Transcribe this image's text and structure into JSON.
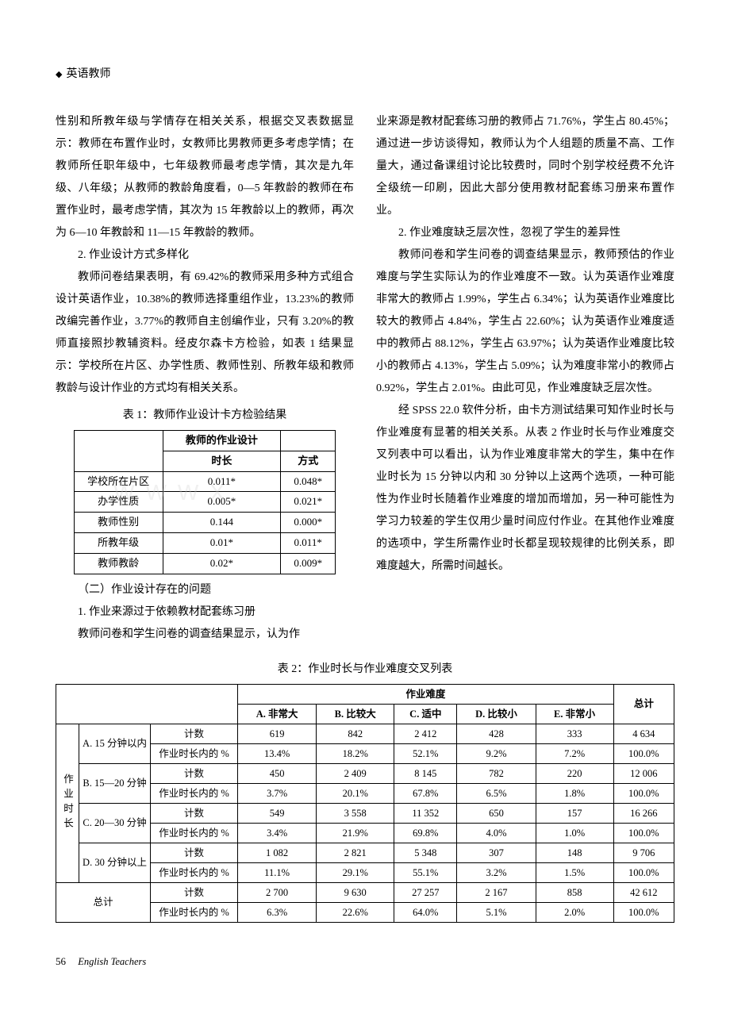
{
  "header": {
    "title": "英语教师"
  },
  "col_left": {
    "p1": "性别和所教年级与学情存在相关关系，根据交叉表数据显示：教师在布置作业时，女教师比男教师更多考虑学情；在教师所任职年级中，七年级教师最考虑学情，其次是九年级、八年级；从教师的教龄角度看，0—5 年教龄的教师在布置作业时，最考虑学情，其次为 15 年教龄以上的教师，再次为 6—10 年教龄和 11—15 年教龄的教师。",
    "h2_1": "2. 作业设计方式多样化",
    "p2": "教师问卷结果表明，有 69.42%的教师采用多种方式组合设计英语作业，10.38%的教师选择重组作业，13.23%的教师改编完善作业，3.77%的教师自主创编作业，只有 3.20%的教师直接照抄教辅资料。经皮尔森卡方检验，如表 1 结果显示：学校所在片区、办学性质、教师性别、所教年级和教师教龄与设计作业的方式均有相关关系。",
    "table1_caption": "表 1：教师作业设计卡方检验结果",
    "h3_1": "（二）作业设计存在的问题",
    "h3_2": "1. 作业来源过于依赖教材配套练习册",
    "p3": "教师问卷和学生问卷的调查结果显示，认为作"
  },
  "col_right": {
    "p1": "业来源是教材配套练习册的教师占 71.76%，学生占 80.45%；通过进一步访谈得知，教师认为个人组题的质量不高、工作量大，通过备课组讨论比较费时，同时个别学校经费不允许全级统一印刷，因此大部分使用教材配套练习册来布置作业。",
    "h2_1": "2. 作业难度缺乏层次性，忽视了学生的差异性",
    "p2": "教师问卷和学生问卷的调查结果显示，教师预估的作业难度与学生实际认为的作业难度不一致。认为英语作业难度非常大的教师占 1.99%，学生占 6.34%；认为英语作业难度比较大的教师占 4.84%，学生占 22.60%；认为英语作业难度适中的教师占 88.12%，学生占 63.97%；认为英语作业难度比较小的教师占 4.13%，学生占 5.09%；认为难度非常小的教师占 0.92%，学生占 2.01%。由此可见，作业难度缺乏层次性。",
    "p3": "经 SPSS 22.0 软件分析，由卡方测试结果可知作业时长与作业难度有显著的相关关系。从表 2 作业时长与作业难度交叉列表中可以看出，认为作业难度非常大的学生，集中在作业时长为 15 分钟以内和 30 分钟以上这两个选项，一种可能性为作业时长随着作业难度的增加而增加，另一种可能性为学习力较差的学生仅用少量时间应付作业。在其他作业难度的选项中，学生所需作业时长都呈现较规律的比例关系，即难度越大，所需时间越长。"
  },
  "table1": {
    "columns": [
      "",
      "时长",
      "方式"
    ],
    "hdr_top": "教师的作业设计",
    "rows": [
      [
        "学校所在片区",
        "0.011*",
        "0.048*"
      ],
      [
        "办学性质",
        "0.005*",
        "0.021*"
      ],
      [
        "教师性别",
        "0.144",
        "0.000*"
      ],
      [
        "所教年级",
        "0.01*",
        "0.011*"
      ],
      [
        "教师教龄",
        "0.02*",
        "0.009*"
      ]
    ]
  },
  "table2": {
    "caption": "表 2：作业时长与作业难度交叉列表",
    "vlabel": "作业时长",
    "difficulty_header": "作业难度",
    "difficulty_cols": [
      "A. 非常大",
      "B. 比较大",
      "C. 适中",
      "D. 比较小",
      "E. 非常小"
    ],
    "total_header": "总计",
    "stat_count": "计数",
    "stat_pct": "作业时长内的 %",
    "time_rows": [
      {
        "label": "A. 15 分钟以内",
        "count": [
          "619",
          "842",
          "2 412",
          "428",
          "333",
          "4 634"
        ],
        "pct": [
          "13.4%",
          "18.2%",
          "52.1%",
          "9.2%",
          "7.2%",
          "100.0%"
        ]
      },
      {
        "label": "B. 15—20 分钟",
        "count": [
          "450",
          "2 409",
          "8 145",
          "782",
          "220",
          "12 006"
        ],
        "pct": [
          "3.7%",
          "20.1%",
          "67.8%",
          "6.5%",
          "1.8%",
          "100.0%"
        ]
      },
      {
        "label": "C. 20—30 分钟",
        "count": [
          "549",
          "3 558",
          "11 352",
          "650",
          "157",
          "16 266"
        ],
        "pct": [
          "3.4%",
          "21.9%",
          "69.8%",
          "4.0%",
          "1.0%",
          "100.0%"
        ]
      },
      {
        "label": "D. 30 分钟以上",
        "count": [
          "1 082",
          "2 821",
          "5 348",
          "307",
          "148",
          "9 706"
        ],
        "pct": [
          "11.1%",
          "29.1%",
          "55.1%",
          "3.2%",
          "1.5%",
          "100.0%"
        ]
      }
    ],
    "total_row": {
      "label": "总计",
      "count": [
        "2 700",
        "9 630",
        "27 257",
        "2 167",
        "858",
        "42 612"
      ],
      "pct": [
        "6.3%",
        "22.6%",
        "64.0%",
        "5.1%",
        "2.0%",
        "100.0%"
      ]
    }
  },
  "footer": {
    "page_num": "56",
    "publication": "English Teachers"
  }
}
